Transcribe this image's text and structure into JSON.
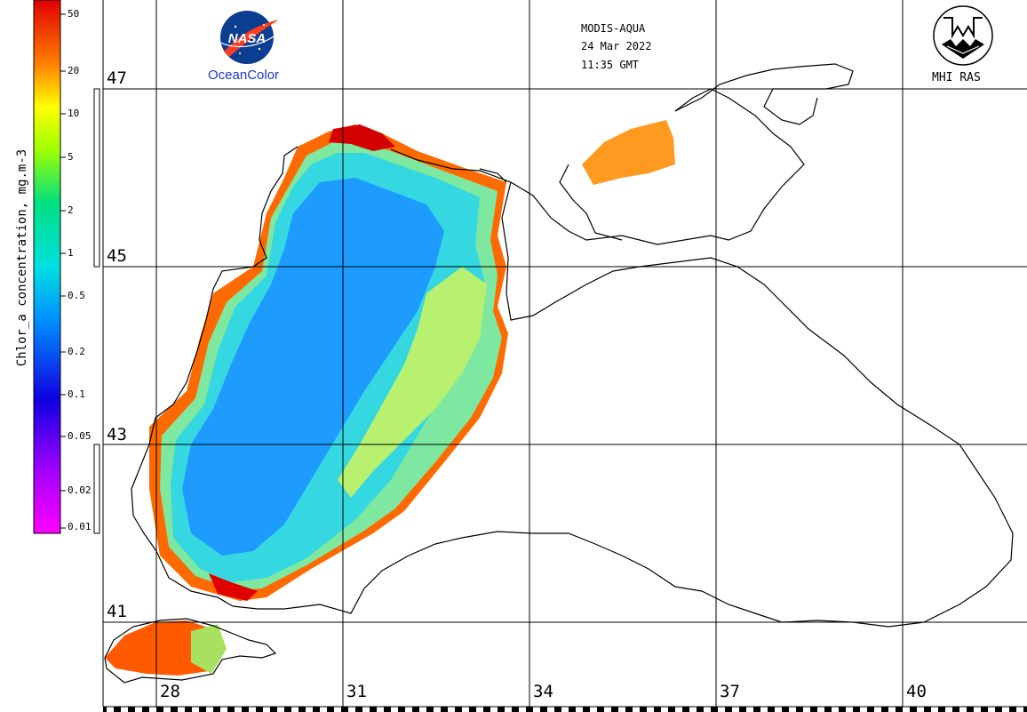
{
  "header": {
    "sensor": "MODIS-AQUA",
    "date": "24 Mar 2022",
    "time": "11:35 GMT"
  },
  "logos": {
    "nasa": "NASA",
    "oceancolor": "OceanColor",
    "mhi": "MHI RAS"
  },
  "colorbar": {
    "title": "Chlor_a concentration, mg.m-3",
    "ticks": [
      "50",
      "20",
      "10",
      "5",
      "2",
      "1",
      "0.5",
      "0.2",
      "0.1",
      "0.05",
      "0.02",
      "0.01"
    ]
  },
  "grid": {
    "lat_labels": [
      "47",
      "45",
      "43",
      "41"
    ],
    "lon_labels": [
      "28",
      "31",
      "34",
      "37",
      "40"
    ]
  },
  "colors": {
    "land_outline": "#000000",
    "grid": "#000000",
    "low": "#1e90ff",
    "mid": "#00e0e0",
    "high": "#ff3000"
  }
}
